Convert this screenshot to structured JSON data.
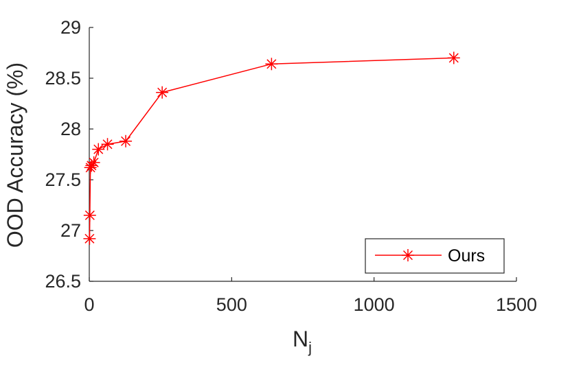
{
  "chart_data": {
    "type": "line",
    "title": "",
    "xlabel": "N",
    "xlabel_subscript": "j",
    "ylabel": "OOD Accuracy (%)",
    "xlim": [
      0,
      1500
    ],
    "ylim": [
      26.5,
      29
    ],
    "xticks": [
      0,
      500,
      1000,
      1500
    ],
    "yticks": [
      26.5,
      27,
      27.5,
      28,
      28.5,
      29
    ],
    "xtick_labels": [
      "0",
      "500",
      "1000",
      "1500"
    ],
    "ytick_labels": [
      "26.5",
      "27",
      "27.5",
      "28",
      "28.5",
      "29"
    ],
    "grid": false,
    "legend_position": "bottom-right",
    "series": [
      {
        "name": "Ours",
        "color": "#ff0000",
        "marker": "asterisk",
        "x": [
          1,
          2,
          4,
          8,
          16,
          32,
          64,
          128,
          256,
          640,
          1280
        ],
        "y": [
          26.92,
          27.15,
          27.62,
          27.64,
          27.67,
          27.8,
          27.85,
          27.88,
          28.36,
          28.64,
          28.7
        ]
      }
    ]
  }
}
